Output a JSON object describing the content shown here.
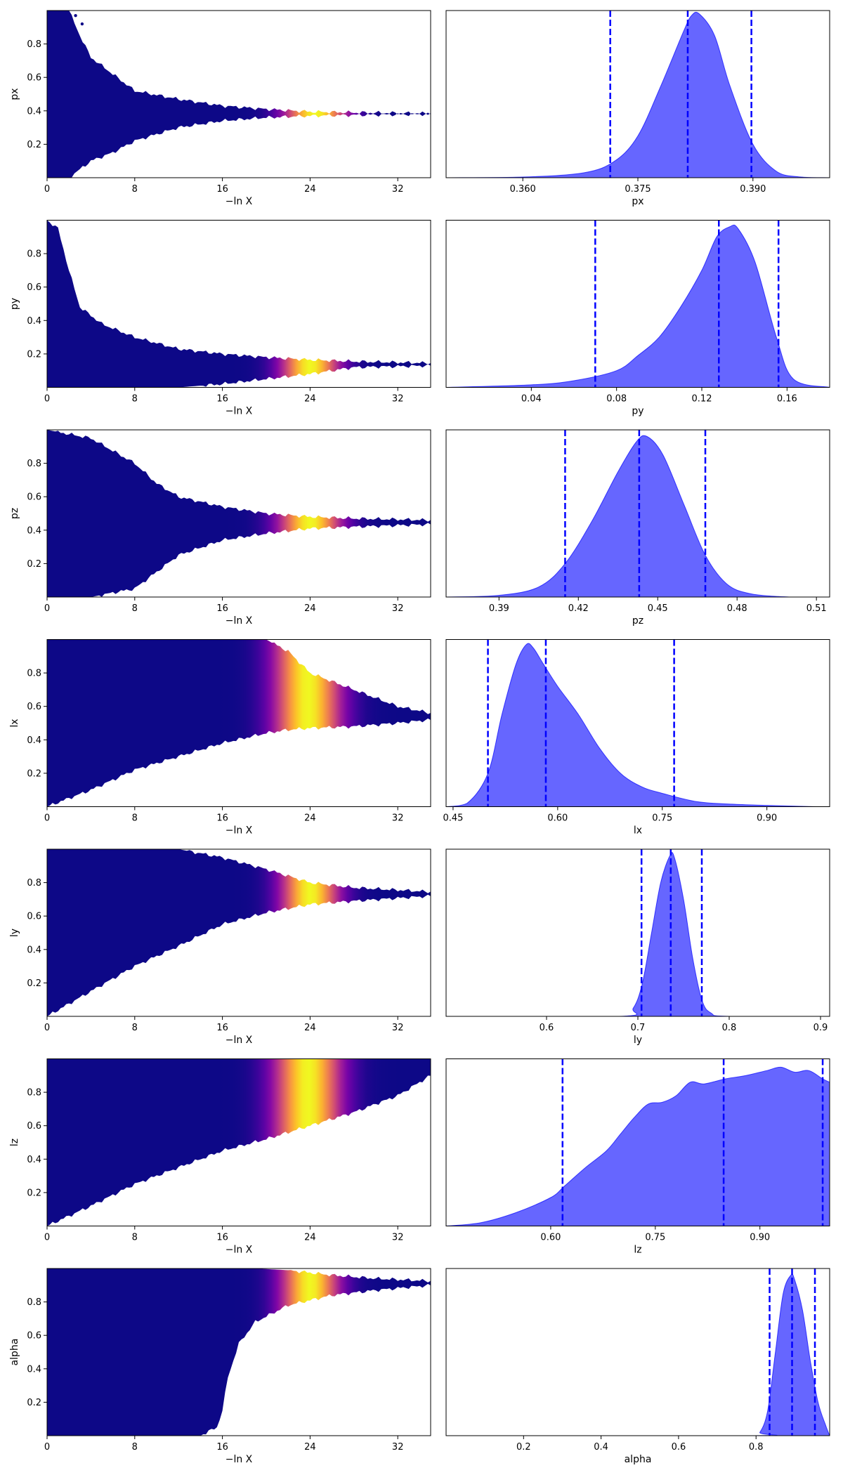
{
  "chart_data": [
    {
      "param": "px",
      "type": "scatter",
      "ylabel": "px",
      "xlabel": "−ln X",
      "xlim": [
        0,
        35
      ],
      "ylim": [
        0,
        1
      ],
      "x_ticks": [
        0,
        8,
        16,
        24,
        32
      ],
      "x_tick_labels": [
        "0",
        "8",
        "16",
        "24",
        "32"
      ],
      "y_ticks": [
        0.2,
        0.4,
        0.6,
        0.8
      ],
      "y_tick_labels": [
        "0.2",
        "0.4",
        "0.6",
        "0.8"
      ],
      "colormap": "plasma",
      "color_peak_x": 24.5,
      "color_width": 2.8,
      "envelope": [
        [
          0,
          0.0,
          1.0
        ],
        [
          2,
          0.0,
          1.0
        ],
        [
          3,
          0.05,
          0.85
        ],
        [
          4,
          0.1,
          0.72
        ],
        [
          6,
          0.15,
          0.62
        ],
        [
          8,
          0.22,
          0.52
        ],
        [
          12,
          0.3,
          0.47
        ],
        [
          16,
          0.34,
          0.43
        ],
        [
          20,
          0.36,
          0.41
        ],
        [
          24,
          0.37,
          0.395
        ],
        [
          28,
          0.375,
          0.39
        ],
        [
          35,
          0.38,
          0.385
        ]
      ],
      "tail": [
        [
          3.2,
          0.92
        ],
        [
          2.6,
          0.97
        ]
      ]
    },
    {
      "param": "px",
      "type": "area",
      "xlabel": "px",
      "xlim": [
        0.35,
        0.4
      ],
      "x_ticks": [
        0.36,
        0.375,
        0.39
      ],
      "x_tick_labels": [
        "0.360",
        "0.375",
        "0.390"
      ],
      "curve": [
        [
          0.35,
          0.0
        ],
        [
          0.36,
          0.004
        ],
        [
          0.368,
          0.03
        ],
        [
          0.372,
          0.1
        ],
        [
          0.375,
          0.25
        ],
        [
          0.378,
          0.55
        ],
        [
          0.381,
          0.88
        ],
        [
          0.382,
          0.97
        ],
        [
          0.383,
          0.98
        ],
        [
          0.385,
          0.85
        ],
        [
          0.387,
          0.55
        ],
        [
          0.39,
          0.2
        ],
        [
          0.393,
          0.04
        ],
        [
          0.396,
          0.005
        ],
        [
          0.4,
          0.0
        ]
      ],
      "quantiles": [
        0.3714,
        0.3815,
        0.3898
      ]
    },
    {
      "param": "py",
      "type": "scatter",
      "ylabel": "py",
      "xlabel": "−ln X",
      "xlim": [
        0,
        35
      ],
      "ylim": [
        0,
        1
      ],
      "x_ticks": [
        0,
        8,
        16,
        24,
        32
      ],
      "x_tick_labels": [
        "0",
        "8",
        "16",
        "24",
        "32"
      ],
      "y_ticks": [
        0.2,
        0.4,
        0.6,
        0.8
      ],
      "y_tick_labels": [
        "0.2",
        "0.4",
        "0.6",
        "0.8"
      ],
      "colormap": "plasma",
      "color_peak_x": 24,
      "color_width": 2.6,
      "envelope": [
        [
          0,
          0.0,
          1.0
        ],
        [
          1,
          0.0,
          0.95
        ],
        [
          2,
          0.0,
          0.7
        ],
        [
          3,
          0.0,
          0.48
        ],
        [
          5,
          0.0,
          0.38
        ],
        [
          8,
          0.0,
          0.3
        ],
        [
          12,
          0.0,
          0.23
        ],
        [
          16,
          0.02,
          0.2
        ],
        [
          20,
          0.05,
          0.18
        ],
        [
          24,
          0.08,
          0.165
        ],
        [
          28,
          0.12,
          0.155
        ],
        [
          35,
          0.13,
          0.145
        ]
      ],
      "tail": []
    },
    {
      "param": "py",
      "type": "area",
      "xlabel": "py",
      "xlim": [
        0.0,
        0.18
      ],
      "x_ticks": [
        0.04,
        0.08,
        0.12,
        0.16
      ],
      "x_tick_labels": [
        "0.04",
        "0.08",
        "0.12",
        "0.16"
      ],
      "curve": [
        [
          0.0,
          0.0
        ],
        [
          0.04,
          0.015
        ],
        [
          0.06,
          0.04
        ],
        [
          0.08,
          0.1
        ],
        [
          0.09,
          0.19
        ],
        [
          0.1,
          0.3
        ],
        [
          0.11,
          0.48
        ],
        [
          0.12,
          0.7
        ],
        [
          0.127,
          0.9
        ],
        [
          0.133,
          0.96
        ],
        [
          0.137,
          0.95
        ],
        [
          0.145,
          0.75
        ],
        [
          0.155,
          0.3
        ],
        [
          0.163,
          0.05
        ],
        [
          0.18,
          0.0
        ]
      ],
      "quantiles": [
        0.07,
        0.128,
        0.156
      ]
    },
    {
      "param": "pz",
      "type": "scatter",
      "ylabel": "pz",
      "xlabel": "−ln X",
      "xlim": [
        0,
        35
      ],
      "ylim": [
        0,
        1
      ],
      "x_ticks": [
        0,
        8,
        16,
        24,
        32
      ],
      "x_tick_labels": [
        "0",
        "8",
        "16",
        "24",
        "32"
      ],
      "y_ticks": [
        0.2,
        0.4,
        0.6,
        0.8
      ],
      "y_tick_labels": [
        "0.2",
        "0.4",
        "0.6",
        "0.8"
      ],
      "colormap": "plasma",
      "color_peak_x": 24,
      "color_width": 2.8,
      "envelope": [
        [
          0,
          0.0,
          1.0
        ],
        [
          4,
          0.0,
          0.95
        ],
        [
          8,
          0.05,
          0.8
        ],
        [
          10,
          0.15,
          0.68
        ],
        [
          12,
          0.25,
          0.6
        ],
        [
          16,
          0.34,
          0.54
        ],
        [
          20,
          0.38,
          0.5
        ],
        [
          24,
          0.41,
          0.48
        ],
        [
          28,
          0.42,
          0.47
        ],
        [
          35,
          0.435,
          0.46
        ]
      ],
      "tail": []
    },
    {
      "param": "pz",
      "type": "area",
      "xlabel": "pz",
      "xlim": [
        0.37,
        0.515
      ],
      "x_ticks": [
        0.39,
        0.42,
        0.45,
        0.48,
        0.51
      ],
      "x_tick_labels": [
        "0.39",
        "0.42",
        "0.45",
        "0.48",
        "0.51"
      ],
      "curve": [
        [
          0.37,
          0.0
        ],
        [
          0.39,
          0.01
        ],
        [
          0.405,
          0.06
        ],
        [
          0.415,
          0.2
        ],
        [
          0.425,
          0.45
        ],
        [
          0.435,
          0.75
        ],
        [
          0.442,
          0.93
        ],
        [
          0.446,
          0.96
        ],
        [
          0.452,
          0.85
        ],
        [
          0.46,
          0.55
        ],
        [
          0.468,
          0.25
        ],
        [
          0.476,
          0.08
        ],
        [
          0.485,
          0.02
        ],
        [
          0.5,
          0.0
        ],
        [
          0.515,
          0.0
        ]
      ],
      "quantiles": [
        0.415,
        0.443,
        0.468
      ]
    },
    {
      "param": "lx",
      "type": "scatter",
      "ylabel": "lx",
      "xlabel": "−ln X",
      "xlim": [
        0,
        35
      ],
      "ylim": [
        0,
        1
      ],
      "x_ticks": [
        0,
        8,
        16,
        24,
        32
      ],
      "x_tick_labels": [
        "0",
        "8",
        "16",
        "24",
        "32"
      ],
      "y_ticks": [
        0.2,
        0.4,
        0.6,
        0.8
      ],
      "y_tick_labels": [
        "0.2",
        "0.4",
        "0.6",
        "0.8"
      ],
      "colormap": "plasma",
      "color_peak_x": 23.8,
      "color_width": 3.0,
      "envelope": [
        [
          0,
          0.0,
          1.0
        ],
        [
          4,
          0.1,
          1.0
        ],
        [
          8,
          0.22,
          1.0
        ],
        [
          12,
          0.3,
          1.0
        ],
        [
          16,
          0.38,
          1.0
        ],
        [
          20,
          0.44,
          1.0
        ],
        [
          22,
          0.46,
          0.93
        ],
        [
          24,
          0.47,
          0.8
        ],
        [
          28,
          0.48,
          0.7
        ],
        [
          32,
          0.5,
          0.6
        ],
        [
          35,
          0.52,
          0.56
        ]
      ],
      "tail": []
    },
    {
      "param": "lx",
      "type": "area",
      "xlabel": "lx",
      "xlim": [
        0.44,
        0.99
      ],
      "x_ticks": [
        0.45,
        0.6,
        0.75,
        0.9
      ],
      "x_tick_labels": [
        "0.45",
        "0.60",
        "0.75",
        "0.90"
      ],
      "curve": [
        [
          0.44,
          0.0
        ],
        [
          0.47,
          0.02
        ],
        [
          0.5,
          0.2
        ],
        [
          0.52,
          0.55
        ],
        [
          0.54,
          0.85
        ],
        [
          0.555,
          0.97
        ],
        [
          0.565,
          0.95
        ],
        [
          0.58,
          0.85
        ],
        [
          0.6,
          0.72
        ],
        [
          0.63,
          0.55
        ],
        [
          0.66,
          0.35
        ],
        [
          0.69,
          0.2
        ],
        [
          0.72,
          0.12
        ],
        [
          0.75,
          0.08
        ],
        [
          0.8,
          0.03
        ],
        [
          0.85,
          0.015
        ],
        [
          0.9,
          0.008
        ],
        [
          0.97,
          0.0
        ],
        [
          0.99,
          0.0
        ]
      ],
      "quantiles": [
        0.5,
        0.583,
        0.767
      ]
    },
    {
      "param": "ly",
      "type": "scatter",
      "ylabel": "ly",
      "xlabel": "−ln X",
      "xlim": [
        0,
        35
      ],
      "ylim": [
        0,
        1
      ],
      "x_ticks": [
        0,
        8,
        16,
        24,
        32
      ],
      "x_tick_labels": [
        "0",
        "8",
        "16",
        "24",
        "32"
      ],
      "y_ticks": [
        0.2,
        0.4,
        0.6,
        0.8
      ],
      "y_tick_labels": [
        "0.2",
        "0.4",
        "0.6",
        "0.8"
      ],
      "colormap": "plasma",
      "color_peak_x": 24,
      "color_width": 2.6,
      "envelope": [
        [
          0,
          0.0,
          1.0
        ],
        [
          4,
          0.15,
          1.0
        ],
        [
          8,
          0.3,
          1.0
        ],
        [
          12,
          0.42,
          1.0
        ],
        [
          16,
          0.55,
          0.95
        ],
        [
          20,
          0.62,
          0.88
        ],
        [
          24,
          0.67,
          0.8
        ],
        [
          28,
          0.69,
          0.77
        ],
        [
          35,
          0.72,
          0.745
        ]
      ],
      "tail": []
    },
    {
      "param": "ly",
      "type": "area",
      "xlabel": "ly",
      "xlim": [
        0.49,
        0.91
      ],
      "x_ticks": [
        0.6,
        0.7,
        0.8,
        0.9
      ],
      "x_tick_labels": [
        "0.6",
        "0.7",
        "0.8",
        "0.9"
      ],
      "curve": [
        [
          0.49,
          0.0
        ],
        [
          0.68,
          0.0
        ],
        [
          0.695,
          0.05
        ],
        [
          0.705,
          0.2
        ],
        [
          0.715,
          0.5
        ],
        [
          0.725,
          0.8
        ],
        [
          0.735,
          0.96
        ],
        [
          0.74,
          0.95
        ],
        [
          0.75,
          0.7
        ],
        [
          0.76,
          0.35
        ],
        [
          0.77,
          0.1
        ],
        [
          0.78,
          0.02
        ],
        [
          0.8,
          0.0
        ],
        [
          0.91,
          0.0
        ]
      ],
      "quantiles": [
        0.704,
        0.736,
        0.77
      ]
    },
    {
      "param": "lz",
      "type": "scatter",
      "ylabel": "lz",
      "xlabel": "−ln X",
      "xlim": [
        0,
        35
      ],
      "ylim": [
        0,
        1
      ],
      "x_ticks": [
        0,
        8,
        16,
        24,
        32
      ],
      "x_tick_labels": [
        "0",
        "8",
        "16",
        "24",
        "32"
      ],
      "y_ticks": [
        0.2,
        0.4,
        0.6,
        0.8
      ],
      "y_tick_labels": [
        "0.2",
        "0.4",
        "0.6",
        "0.8"
      ],
      "colormap": "plasma",
      "color_peak_x": 23.8,
      "color_width": 3.0,
      "envelope": [
        [
          0,
          0.0,
          1.0
        ],
        [
          4,
          0.12,
          1.0
        ],
        [
          8,
          0.25,
          1.0
        ],
        [
          12,
          0.35,
          1.0
        ],
        [
          16,
          0.45,
          1.0
        ],
        [
          20,
          0.52,
          1.0
        ],
        [
          24,
          0.6,
          1.0
        ],
        [
          28,
          0.68,
          1.0
        ],
        [
          32,
          0.78,
          1.0
        ],
        [
          35,
          0.9,
          1.0
        ]
      ],
      "tail": []
    },
    {
      "param": "lz",
      "type": "area",
      "xlabel": "lz",
      "xlim": [
        0.45,
        1.0
      ],
      "x_ticks": [
        0.6,
        0.75,
        0.9
      ],
      "x_tick_labels": [
        "0.60",
        "0.75",
        "0.90"
      ],
      "curve": [
        [
          0.45,
          0.0
        ],
        [
          0.5,
          0.02
        ],
        [
          0.55,
          0.08
        ],
        [
          0.6,
          0.17
        ],
        [
          0.62,
          0.24
        ],
        [
          0.65,
          0.35
        ],
        [
          0.68,
          0.45
        ],
        [
          0.7,
          0.55
        ],
        [
          0.72,
          0.65
        ],
        [
          0.74,
          0.73
        ],
        [
          0.76,
          0.74
        ],
        [
          0.78,
          0.78
        ],
        [
          0.8,
          0.86
        ],
        [
          0.82,
          0.85
        ],
        [
          0.85,
          0.88
        ],
        [
          0.88,
          0.9
        ],
        [
          0.91,
          0.93
        ],
        [
          0.93,
          0.95
        ],
        [
          0.95,
          0.92
        ],
        [
          0.97,
          0.93
        ],
        [
          0.99,
          0.88
        ],
        [
          1.0,
          0.86
        ]
      ],
      "quantiles": [
        0.617,
        0.848,
        0.99
      ]
    },
    {
      "param": "alpha",
      "type": "scatter",
      "ylabel": "alpha",
      "xlabel": "−ln X",
      "xlim": [
        0,
        35
      ],
      "ylim": [
        0,
        1
      ],
      "x_ticks": [
        0,
        8,
        16,
        24,
        32
      ],
      "x_tick_labels": [
        "0",
        "8",
        "16",
        "24",
        "32"
      ],
      "y_ticks": [
        0.2,
        0.4,
        0.6,
        0.8
      ],
      "y_tick_labels": [
        "0.2",
        "0.4",
        "0.6",
        "0.8"
      ],
      "colormap": "plasma",
      "color_peak_x": 24,
      "color_width": 2.6,
      "envelope": [
        [
          0,
          0.0,
          1.0
        ],
        [
          14,
          0.0,
          1.0
        ],
        [
          15.5,
          0.05,
          1.0
        ],
        [
          16,
          0.15,
          1.0
        ],
        [
          16.5,
          0.35,
          1.0
        ],
        [
          17.5,
          0.55,
          1.0
        ],
        [
          19,
          0.68,
          1.0
        ],
        [
          22,
          0.78,
          0.99
        ],
        [
          26,
          0.84,
          0.96
        ],
        [
          30,
          0.87,
          0.94
        ],
        [
          35,
          0.9,
          0.925
        ]
      ],
      "tail": []
    },
    {
      "param": "alpha",
      "type": "area",
      "xlabel": "alpha",
      "xlim": [
        0.0,
        0.99
      ],
      "x_ticks": [
        0.2,
        0.4,
        0.6,
        0.8
      ],
      "x_tick_labels": [
        "0.2",
        "0.4",
        "0.6",
        "0.8"
      ],
      "curve": [
        [
          0.0,
          0.0
        ],
        [
          0.79,
          0.0
        ],
        [
          0.81,
          0.02
        ],
        [
          0.83,
          0.15
        ],
        [
          0.85,
          0.5
        ],
        [
          0.87,
          0.85
        ],
        [
          0.89,
          0.96
        ],
        [
          0.9,
          0.93
        ],
        [
          0.92,
          0.75
        ],
        [
          0.94,
          0.45
        ],
        [
          0.96,
          0.2
        ],
        [
          0.98,
          0.06
        ],
        [
          0.99,
          0.0
        ]
      ],
      "quantiles": [
        0.835,
        0.893,
        0.952
      ]
    }
  ]
}
